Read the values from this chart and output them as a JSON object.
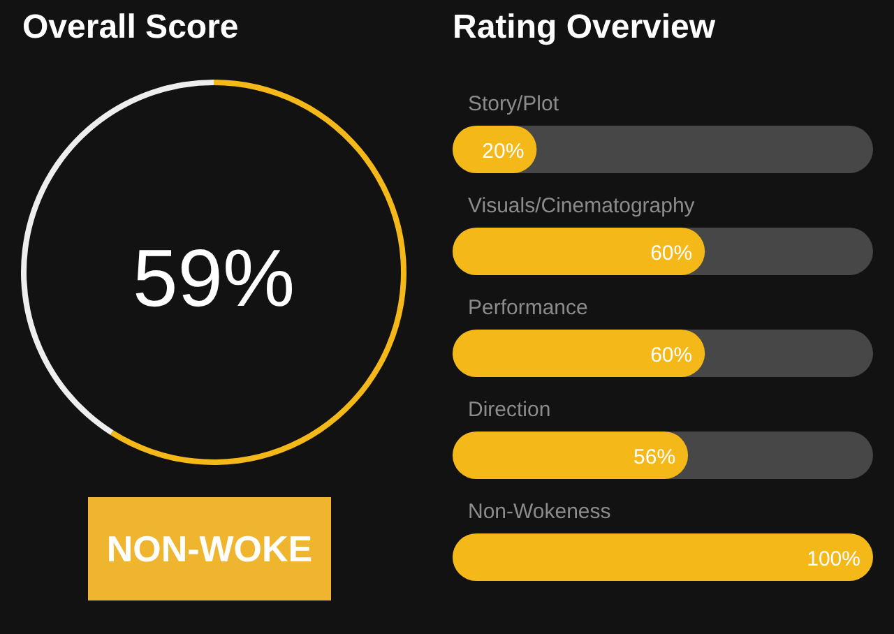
{
  "chart_data": [
    {
      "type": "donut",
      "title": "Overall Score",
      "categories": [
        null,
        null
      ],
      "values": [
        59,
        41
      ],
      "colors": [
        "#f4b819",
        "#eeeeee"
      ],
      "value_labels": [
        "59%",
        null
      ],
      "annotations": [
        "NON-WOKE"
      ]
    },
    {
      "type": "bar",
      "title": "Rating Overview",
      "orientation": "horizontal",
      "categories": [
        "Story/Plot",
        "Visuals/Cinematography",
        "Performance",
        "Direction",
        "Non-Wokeness"
      ],
      "values": [
        20,
        60,
        60,
        56,
        100
      ],
      "color": "#f4b819",
      "value_labels": [
        "20%",
        "60%",
        "60%",
        "56%",
        "100%"
      ],
      "xlim": [
        0,
        100
      ],
      "tick_labels": "y"
    }
  ]
}
